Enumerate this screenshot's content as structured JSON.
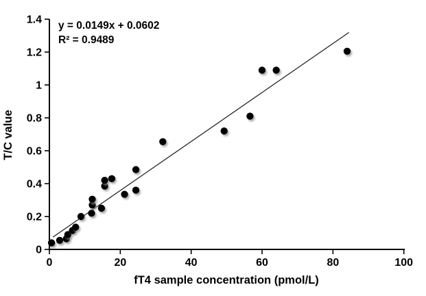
{
  "chart_data": {
    "type": "scatter",
    "title": "",
    "xlabel": "fT4 sample concentration (pmol/L)",
    "ylabel": "T/C value",
    "xlim": [
      0,
      100
    ],
    "ylim": [
      0,
      1.4
    ],
    "x_ticks": [
      0,
      20,
      40,
      60,
      80,
      100
    ],
    "y_ticks": [
      0,
      0.2,
      0.4,
      0.6,
      0.8,
      1,
      1.2,
      1.4
    ],
    "grid": false,
    "legend_position": "none",
    "points": [
      [
        0.6,
        0.04
      ],
      [
        2.9,
        0.055
      ],
      [
        4.8,
        0.065
      ],
      [
        5.2,
        0.09
      ],
      [
        6.5,
        0.115
      ],
      [
        7.4,
        0.135
      ],
      [
        8.9,
        0.2
      ],
      [
        11.9,
        0.22
      ],
      [
        12.1,
        0.27
      ],
      [
        12.1,
        0.305
      ],
      [
        14.7,
        0.25
      ],
      [
        15.6,
        0.385
      ],
      [
        15.6,
        0.42
      ],
      [
        17.6,
        0.43
      ],
      [
        21.2,
        0.335
      ],
      [
        24.4,
        0.36
      ],
      [
        24.4,
        0.485
      ],
      [
        32.0,
        0.655
      ],
      [
        49.3,
        0.72
      ],
      [
        56.6,
        0.81
      ],
      [
        60.0,
        1.09
      ],
      [
        64.0,
        1.09
      ],
      [
        84.0,
        1.205
      ]
    ],
    "trendline": {
      "slope": 0.0149,
      "intercept": 0.0602,
      "x_start": 1.0,
      "x_end": 84.5
    },
    "annotations": {
      "equation": "y = 0.0149x + 0.0602",
      "r_squared": "R² = 0.9489"
    },
    "colors": {
      "marker": "#000000",
      "trendline": "#1a1a1a",
      "axis": "#000000",
      "background": "#ffffff",
      "marker_shadow": "#8a8a8a"
    }
  }
}
